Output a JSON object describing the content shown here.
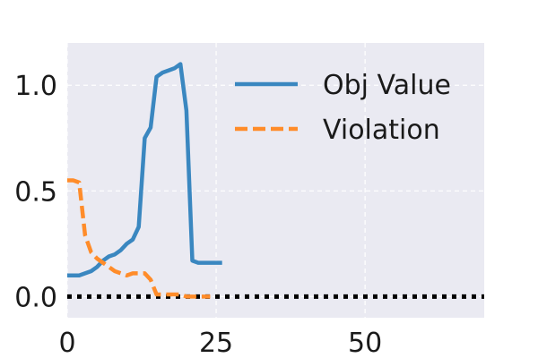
{
  "chart_data": {
    "type": "line",
    "xlim": [
      0,
      70
    ],
    "ylim": [
      -0.1,
      1.2
    ],
    "x_ticks": [
      0,
      25,
      50
    ],
    "y_ticks": [
      0.0,
      0.5,
      1.0
    ],
    "x_tick_labels": [
      "0",
      "25",
      "50"
    ],
    "y_tick_labels": [
      "0.0",
      "0.5",
      "1.0"
    ],
    "grid": true,
    "legend_position": "top-right",
    "background": "#eaeaf2",
    "reference_line": {
      "y": 0.0,
      "style": "dotted",
      "color": "#000000"
    },
    "series": [
      {
        "name": "Obj Value",
        "color": "#3a87c0",
        "style": "solid",
        "x": [
          0,
          1,
          2,
          3,
          4,
          5,
          6,
          7,
          8,
          9,
          10,
          11,
          12,
          13,
          14,
          15,
          16,
          17,
          18,
          19,
          20,
          21,
          22,
          23,
          24,
          25,
          26
        ],
        "y": [
          0.1,
          0.1,
          0.1,
          0.11,
          0.12,
          0.14,
          0.17,
          0.19,
          0.2,
          0.22,
          0.25,
          0.27,
          0.33,
          0.75,
          0.8,
          1.04,
          1.06,
          1.07,
          1.08,
          1.1,
          0.88,
          0.17,
          0.16,
          0.16,
          0.16,
          0.16,
          0.16
        ]
      },
      {
        "name": "Violation",
        "color": "#ff8c2a",
        "style": "dashed",
        "x": [
          0,
          1,
          2,
          3,
          4,
          5,
          6,
          7,
          8,
          9,
          10,
          11,
          12,
          13,
          14,
          15,
          16,
          17,
          18,
          19,
          20,
          21,
          22,
          23,
          24
        ],
        "y": [
          0.55,
          0.55,
          0.54,
          0.29,
          0.21,
          0.18,
          0.16,
          0.14,
          0.12,
          0.11,
          0.1,
          0.11,
          0.11,
          0.11,
          0.08,
          0.01,
          0.01,
          0.01,
          0.01,
          0.01,
          0.0,
          0.0,
          0.0,
          0.0,
          0.0
        ]
      }
    ]
  }
}
